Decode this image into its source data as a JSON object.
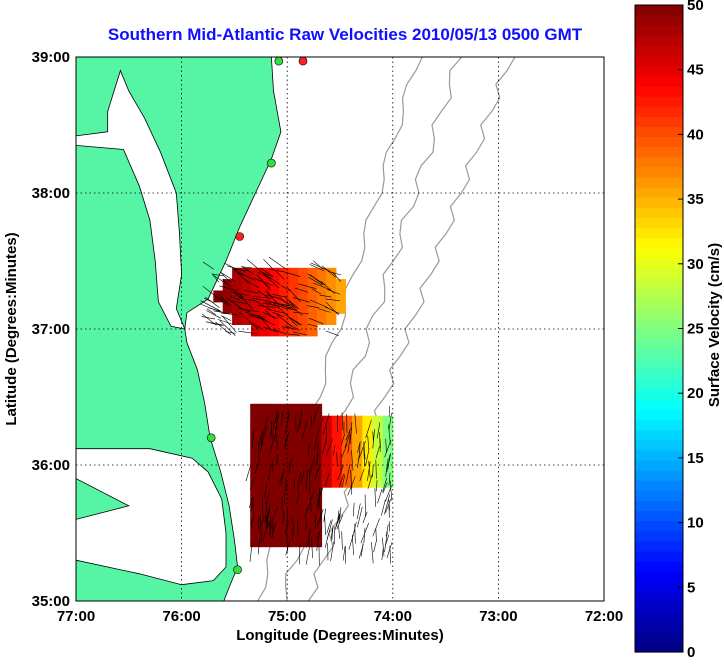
{
  "chart_data": {
    "type": "heatmap",
    "title": "Southern Mid-Atlantic Raw Velocities 2010/05/13 0500 GMT",
    "xlabel": "Longitude (Degrees:Minutes)",
    "ylabel": "Latitude (Degrees:Minutes)",
    "xlim": [
      -77,
      -72
    ],
    "ylim": [
      35,
      39
    ],
    "x_ticks": [
      -77,
      -76,
      -75,
      -74,
      -73,
      -72
    ],
    "x_tick_labels": [
      "77:00",
      "76:00",
      "75:00",
      "74:00",
      "73:00",
      "72:00"
    ],
    "y_ticks": [
      35,
      36,
      37,
      38,
      39
    ],
    "y_tick_labels": [
      "35:00",
      "36:00",
      "37:00",
      "38:00",
      "39:00"
    ],
    "grid": true,
    "colorbar": {
      "label": "Surface Velocity (cm/s)",
      "range": [
        0,
        50
      ],
      "ticks": [
        0,
        5,
        10,
        15,
        20,
        25,
        30,
        35,
        40,
        45,
        50
      ],
      "tick_labels": [
        "0",
        "5",
        "10",
        "15",
        "20",
        "25",
        "30",
        "35",
        "40",
        "45",
        "50"
      ]
    },
    "land_color": "#55f5a5",
    "stations": [
      {
        "lon": -74.85,
        "lat": 38.97,
        "color": "#ff2020"
      },
      {
        "lon": -75.08,
        "lat": 38.97,
        "color": "#30e040"
      },
      {
        "lon": -75.15,
        "lat": 38.22,
        "color": "#30e040"
      },
      {
        "lon": -75.45,
        "lat": 37.68,
        "color": "#ff2020"
      },
      {
        "lon": -75.72,
        "lat": 36.2,
        "color": "#30e040"
      },
      {
        "lon": -75.47,
        "lat": 35.23,
        "color": "#30e040"
      }
    ],
    "velocity_fields": [
      {
        "region": "north",
        "lon_range": [
          -75.7,
          -74.45
        ],
        "lat_range": [
          36.95,
          37.45
        ],
        "speed_range": [
          22,
          50
        ]
      },
      {
        "region": "south",
        "lon_range": [
          -75.35,
          -74.0
        ],
        "lat_range": [
          35.4,
          36.45
        ],
        "speed_range": [
          12,
          50
        ]
      }
    ]
  }
}
